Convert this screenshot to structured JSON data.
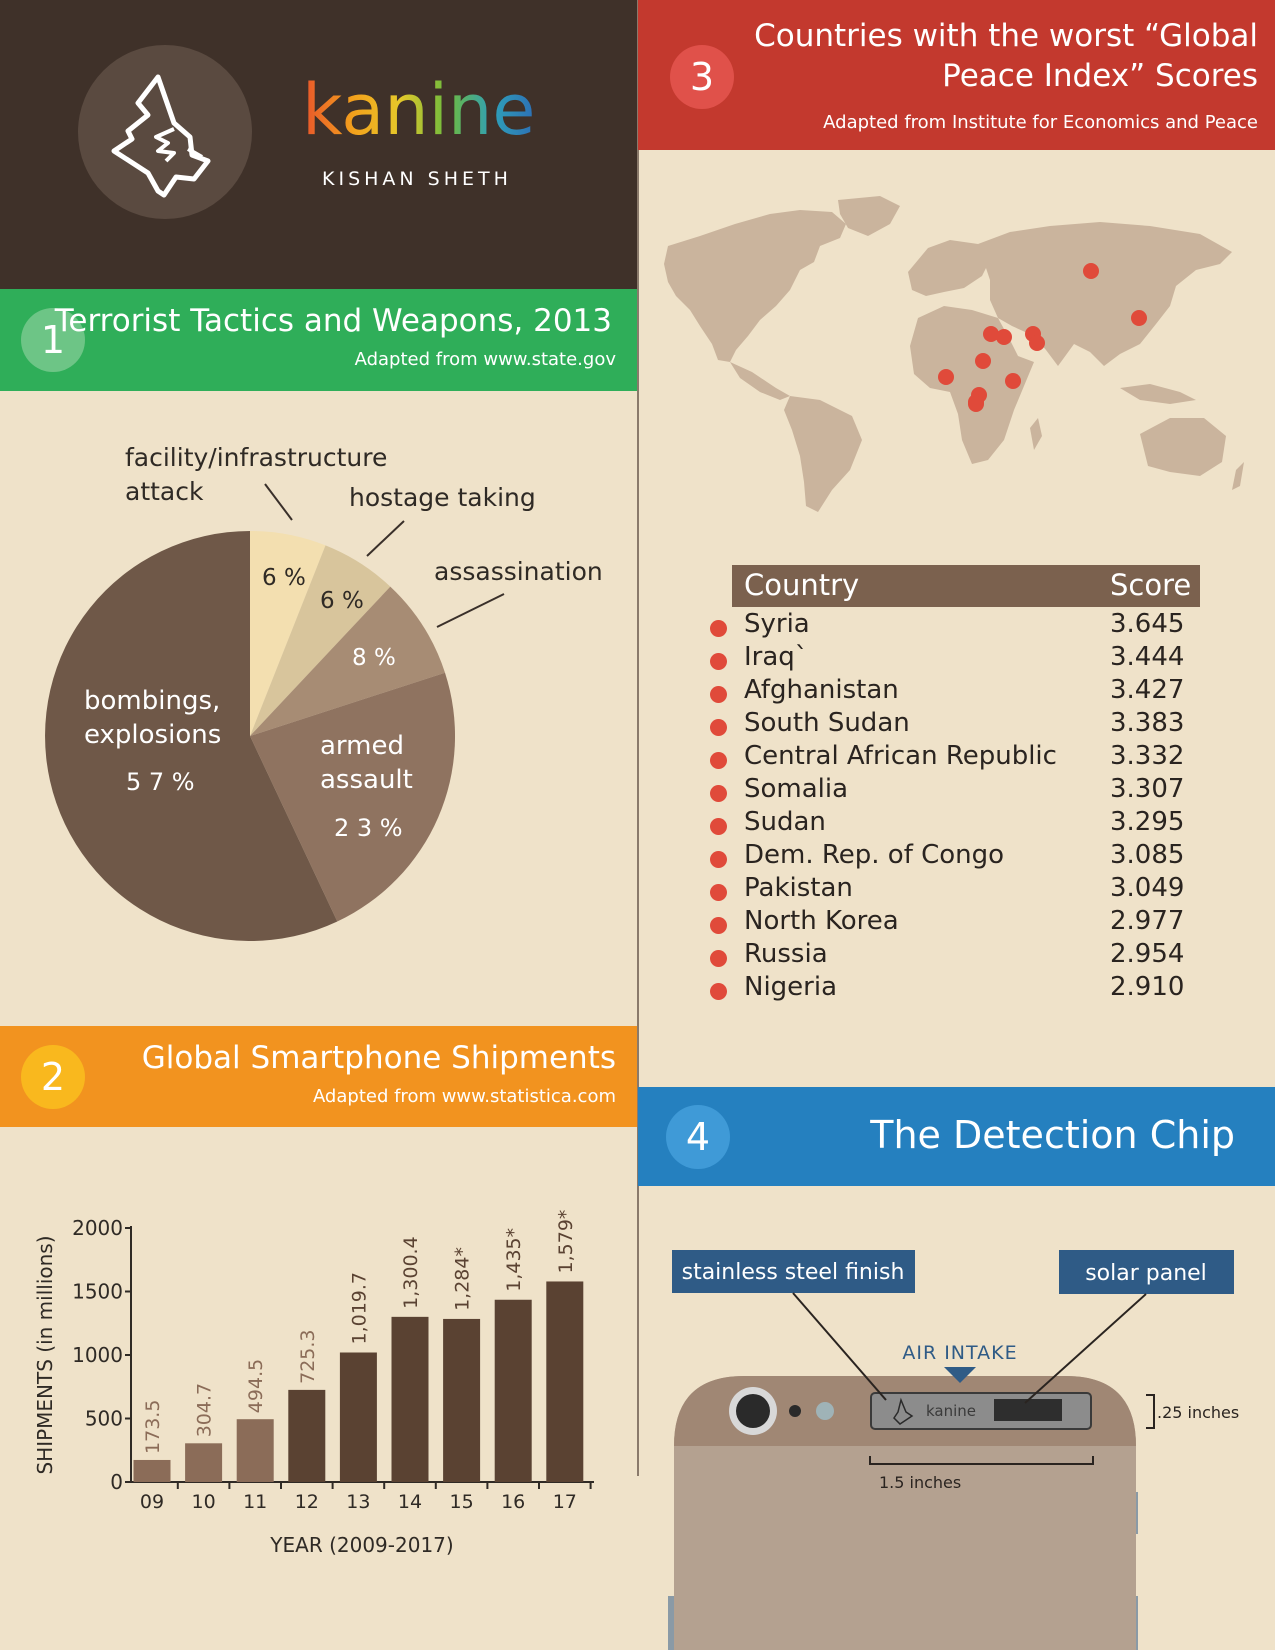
{
  "colors": {
    "background": "#efe2c9",
    "header_dark": "#3f3129",
    "green": "#2fae59",
    "orange": "#f2931f",
    "red": "#c3392e",
    "blue": "#2580bf",
    "brown_dark": "#6f5848",
    "brown_mid": "#8f7360",
    "map_land": "#cab49d",
    "marker_red": "#e04a3a"
  },
  "brand": {
    "logo_icon": "wolf-head-icon",
    "name": "kanine",
    "author": "KISHAN SHETH"
  },
  "section1": {
    "number": "1",
    "title": "Terrorist Tactics and Weapons, 2013",
    "subtitle": "Adapted from www.state.gov"
  },
  "section2": {
    "number": "2",
    "title": "Global Smartphone Shipments",
    "subtitle": "Adapted from www.statistica.com"
  },
  "section3": {
    "number": "3",
    "title_line1": "Countries with the worst “Global",
    "title_line2": "Peace Index” Scores",
    "subtitle": "Adapted from Institute for Economics and Peace",
    "table": {
      "col_country": "Country",
      "col_score": "Score",
      "rows": [
        {
          "country": "Syria",
          "score": "3.645"
        },
        {
          "country": "Iraq`",
          "score": "3.444"
        },
        {
          "country": "Afghanistan",
          "score": "3.427"
        },
        {
          "country": "South Sudan",
          "score": "3.383"
        },
        {
          "country": "Central African Republic",
          "score": "3.332"
        },
        {
          "country": "Somalia",
          "score": "3.307"
        },
        {
          "country": "Sudan",
          "score": "3.295"
        },
        {
          "country": "Dem. Rep. of Congo",
          "score": "3.085"
        },
        {
          "country": "Pakistan",
          "score": "3.049"
        },
        {
          "country": "North Korea",
          "score": "2.977"
        },
        {
          "country": "Russia",
          "score": "2.954"
        },
        {
          "country": "Nigeria",
          "score": "2.910"
        }
      ]
    }
  },
  "section4": {
    "number": "4",
    "title": "The Detection Chip",
    "label_steel": "stainless steel finish",
    "label_solar": "solar panel",
    "air_intake": "AIR INTAKE",
    "chip_brand": "kanine",
    "height_dim": ".25 inches",
    "width_dim": "1.5 inches"
  },
  "chart_data": [
    {
      "type": "pie",
      "title": "Terrorist Tactics and Weapons, 2013",
      "slices": [
        {
          "label": "facility/infrastructure attack",
          "value": 6,
          "value_label": "6 %",
          "color": "#f3dfb0"
        },
        {
          "label": "hostage taking",
          "value": 6,
          "value_label": "6 %",
          "color": "#d8c59c"
        },
        {
          "label": "assassination",
          "value": 8,
          "value_label": "8 %",
          "color": "#a78c74"
        },
        {
          "label": "armed assault",
          "value": 23,
          "value_label": "2 3 %",
          "color": "#8f7360"
        },
        {
          "label": "bombings, explosions",
          "value": 57,
          "value_label": "5 7 %",
          "color": "#6f5848"
        }
      ],
      "inside_labels": {
        "bombings_line1": "bombings,",
        "bombings_line2": "explosions",
        "armed_line1": "armed",
        "armed_line2": "assault"
      },
      "outside_labels": {
        "facility_line1": "facility/infrastructure",
        "facility_line2": "attack",
        "hostage": "hostage taking",
        "assassination": "assassination"
      }
    },
    {
      "type": "bar",
      "title": "Global Smartphone Shipments",
      "categories": [
        "09",
        "10",
        "11",
        "12",
        "13",
        "14",
        "15",
        "16",
        "17"
      ],
      "values": [
        173.5,
        304.7,
        494.5,
        725.3,
        1019.7,
        1300.4,
        1284,
        1435,
        1579
      ],
      "value_labels": [
        "173.5",
        "304.7",
        "494.5",
        "725.3",
        "1,019.7",
        "1,300.4",
        "1,284*",
        "1,435*",
        "1,579*"
      ],
      "ylabel": "SHIPMENTS (in millions)",
      "xlabel": "YEAR (2009-2017)",
      "ylim": [
        0,
        2000
      ],
      "yticks": [
        "0",
        "500",
        "1000",
        "1500",
        "2000"
      ]
    }
  ]
}
